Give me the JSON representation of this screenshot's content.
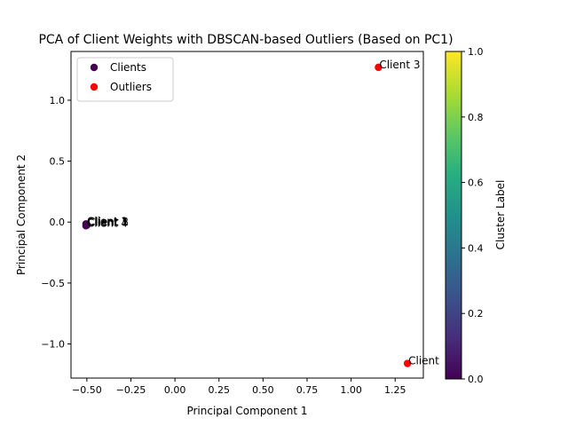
{
  "chart_data": {
    "type": "scatter",
    "title": "PCA of Client Weights with DBSCAN-based Outliers (Based on PC1)",
    "xlabel": "Principal Component 1",
    "ylabel": "Principal Component 2",
    "xlim": [
      -0.59,
      1.41
    ],
    "ylim": [
      -1.28,
      1.4
    ],
    "x_ticks": [
      -0.5,
      -0.25,
      0.0,
      0.25,
      0.5,
      0.75,
      1.0,
      1.25
    ],
    "x_tick_labels": [
      "−0.50",
      "−0.25",
      "0.00",
      "0.25",
      "0.50",
      "0.75",
      "1.00",
      "1.25"
    ],
    "y_ticks": [
      -1.0,
      -0.5,
      0.0,
      0.5,
      1.0
    ],
    "y_tick_labels": [
      "−1.0",
      "−0.5",
      "0.0",
      "0.5",
      "1.0"
    ],
    "grid": false,
    "legend_position": "top-left",
    "legend": [
      {
        "label": "Clients",
        "color": "#440154"
      },
      {
        "label": "Outliers",
        "color": "#ff0000"
      }
    ],
    "colorbar": {
      "label": "Cluster Label",
      "range": [
        0.0,
        1.0
      ],
      "ticks": [
        0.0,
        0.2,
        0.4,
        0.6,
        0.8,
        1.0
      ],
      "tick_labels": [
        "0.0",
        "0.2",
        "0.4",
        "0.6",
        "0.8",
        "1.0"
      ],
      "colormap": "viridis"
    },
    "series": [
      {
        "name": "Clients",
        "color": "#440154",
        "points": [
          {
            "x": -0.505,
            "y": -0.015,
            "label": "Client 1"
          },
          {
            "x": -0.5,
            "y": -0.02,
            "label": "Client 2"
          },
          {
            "x": -0.505,
            "y": -0.03,
            "label": "Client 4"
          },
          {
            "x": -0.5,
            "y": -0.025,
            "label": "Client 5"
          }
        ]
      },
      {
        "name": "Outliers",
        "color": "#ff0000",
        "points": [
          {
            "x": 1.155,
            "y": 1.27,
            "label": "Client 3"
          },
          {
            "x": 1.32,
            "y": -1.16,
            "label": "Client"
          }
        ]
      }
    ]
  }
}
